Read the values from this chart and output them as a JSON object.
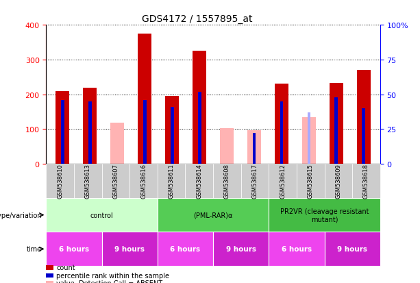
{
  "title": "GDS4172 / 1557895_at",
  "samples": [
    "GSM538610",
    "GSM538613",
    "GSM538607",
    "GSM538616",
    "GSM538611",
    "GSM538614",
    "GSM538608",
    "GSM538617",
    "GSM538612",
    "GSM538615",
    "GSM538609",
    "GSM538618"
  ],
  "count_values": [
    210,
    220,
    null,
    375,
    195,
    325,
    null,
    null,
    230,
    null,
    232,
    270
  ],
  "rank_values": [
    46,
    45,
    null,
    46,
    41,
    52,
    null,
    22,
    45,
    null,
    48,
    40
  ],
  "absent_value_values": [
    null,
    null,
    118,
    null,
    null,
    null,
    103,
    97,
    null,
    135,
    null,
    null
  ],
  "absent_rank_values": [
    null,
    null,
    null,
    null,
    null,
    null,
    null,
    null,
    null,
    37,
    null,
    null
  ],
  "ylim_left": [
    0,
    400
  ],
  "ylim_right": [
    0,
    100
  ],
  "yticks_left": [
    0,
    100,
    200,
    300,
    400
  ],
  "yticks_right": [
    0,
    25,
    50,
    75,
    100
  ],
  "ytick_labels_right": [
    "0",
    "25",
    "50",
    "75",
    "100%"
  ],
  "color_count": "#cc0000",
  "color_rank": "#0000cc",
  "color_absent_value": "#ffb3b3",
  "color_absent_rank": "#aaaaff",
  "genotype_groups": [
    {
      "label": "control",
      "start": 0,
      "end": 3,
      "color": "#ccffcc"
    },
    {
      "label": "(PML-RAR)α",
      "start": 4,
      "end": 7,
      "color": "#55cc55"
    },
    {
      "label": "PR2VR (cleavage resistant\nmutant)",
      "start": 8,
      "end": 11,
      "color": "#44bb44"
    }
  ],
  "time_groups": [
    {
      "label": "6 hours",
      "start": 0,
      "end": 1,
      "color": "#ee44ee"
    },
    {
      "label": "9 hours",
      "start": 2,
      "end": 3,
      "color": "#cc22cc"
    },
    {
      "label": "6 hours",
      "start": 4,
      "end": 5,
      "color": "#ee44ee"
    },
    {
      "label": "9 hours",
      "start": 6,
      "end": 7,
      "color": "#cc22cc"
    },
    {
      "label": "6 hours",
      "start": 8,
      "end": 9,
      "color": "#ee44ee"
    },
    {
      "label": "9 hours",
      "start": 10,
      "end": 11,
      "color": "#cc22cc"
    }
  ],
  "bar_width": 0.5,
  "rank_bar_width": 0.12
}
